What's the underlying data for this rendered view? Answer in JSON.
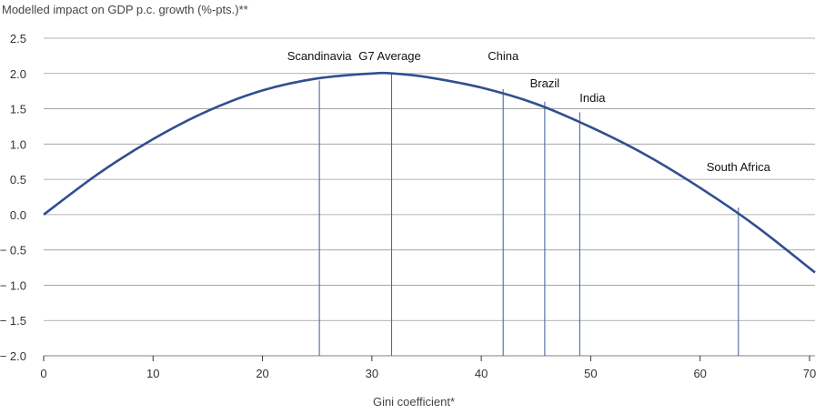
{
  "chart_data": {
    "type": "line",
    "title": "",
    "ylabel": "Modelled impact on GDP p.c. growth (%-pts.)**",
    "xlabel": "Gini coefficient*",
    "xlim": [
      0,
      70.5
    ],
    "ylim": [
      -2.0,
      2.5
    ],
    "x_ticks": [
      0,
      10,
      20,
      30,
      40,
      50,
      60,
      70
    ],
    "x_tick_labels": [
      "0",
      "10",
      "20",
      "30",
      "40",
      "50",
      "60",
      "70"
    ],
    "y_ticks": [
      2.5,
      2.0,
      1.5,
      1.0,
      0.5,
      0.0,
      -0.5,
      -1.0,
      -1.5,
      -2.0
    ],
    "y_tick_labels": [
      "2.5",
      "2.0",
      "1.5",
      "1.0",
      "0.5",
      "0.0",
      "− 0.5",
      "− 1.0",
      "− 1.5",
      "− 2.0"
    ],
    "grid": "horizontal",
    "series": [
      {
        "color": "#2f4f8f",
        "x": [
          0,
          5,
          10,
          15,
          20,
          25,
          30,
          32,
          35,
          40,
          45,
          50,
          55,
          60,
          65,
          70.5
        ],
        "y": [
          0.0,
          0.58,
          1.07,
          1.47,
          1.76,
          1.93,
          2.0,
          2.0,
          1.95,
          1.8,
          1.57,
          1.24,
          0.85,
          0.38,
          -0.15,
          -0.82
        ]
      }
    ],
    "annotations": [
      {
        "label": "Scandinavia",
        "x": 25.2,
        "y": 1.9
      },
      {
        "label": "G7 Average",
        "x": 31.8,
        "y": 2.0
      },
      {
        "label": "China",
        "x": 42.0,
        "y": 1.78
      },
      {
        "label": "Brazil",
        "x": 45.8,
        "y": 1.6
      },
      {
        "label": "India",
        "x": 49.0,
        "y": 1.45
      },
      {
        "label": "South Africa",
        "x": 63.5,
        "y": 0.1
      }
    ],
    "colors": {
      "line": "#2f4f8f",
      "marker_line": "#4a6aa3",
      "grid": "#9a9a9a",
      "axis": "#333333"
    }
  }
}
